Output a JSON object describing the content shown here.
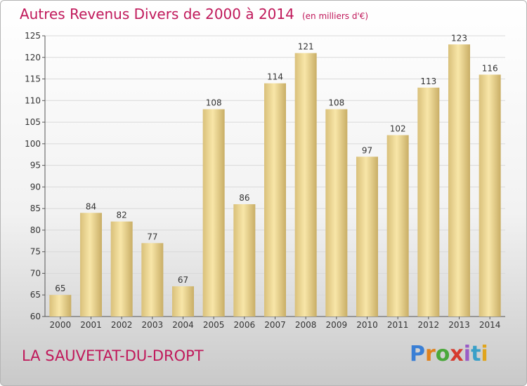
{
  "header": {
    "title": "Autres Revenus Divers de 2000 à 2014",
    "subtitle": "(en milliers d'€)"
  },
  "footer": {
    "location": "LA SAUVETAT-DU-DROPT",
    "brand": "Proxiti"
  },
  "colors": {
    "title": "#c0185a",
    "bar_light": "#f8e6a8",
    "bar_dark": "#c9ae66",
    "grid": "#d9d9d9"
  },
  "chart_data": {
    "type": "bar",
    "title": "Autres Revenus Divers de 2000 à 2014",
    "subtitle": "(en milliers d'€)",
    "xlabel": "",
    "ylabel": "",
    "categories": [
      "2000",
      "2001",
      "2002",
      "2003",
      "2004",
      "2005",
      "2006",
      "2007",
      "2008",
      "2009",
      "2010",
      "2011",
      "2012",
      "2013",
      "2014"
    ],
    "values": [
      65,
      84,
      82,
      77,
      67,
      108,
      86,
      114,
      121,
      108,
      97,
      102,
      113,
      123,
      116
    ],
    "ylim": [
      60,
      125
    ],
    "yticks": [
      60,
      65,
      70,
      75,
      80,
      85,
      90,
      95,
      100,
      105,
      110,
      115,
      120,
      125
    ],
    "grid": true,
    "legend": "none"
  }
}
